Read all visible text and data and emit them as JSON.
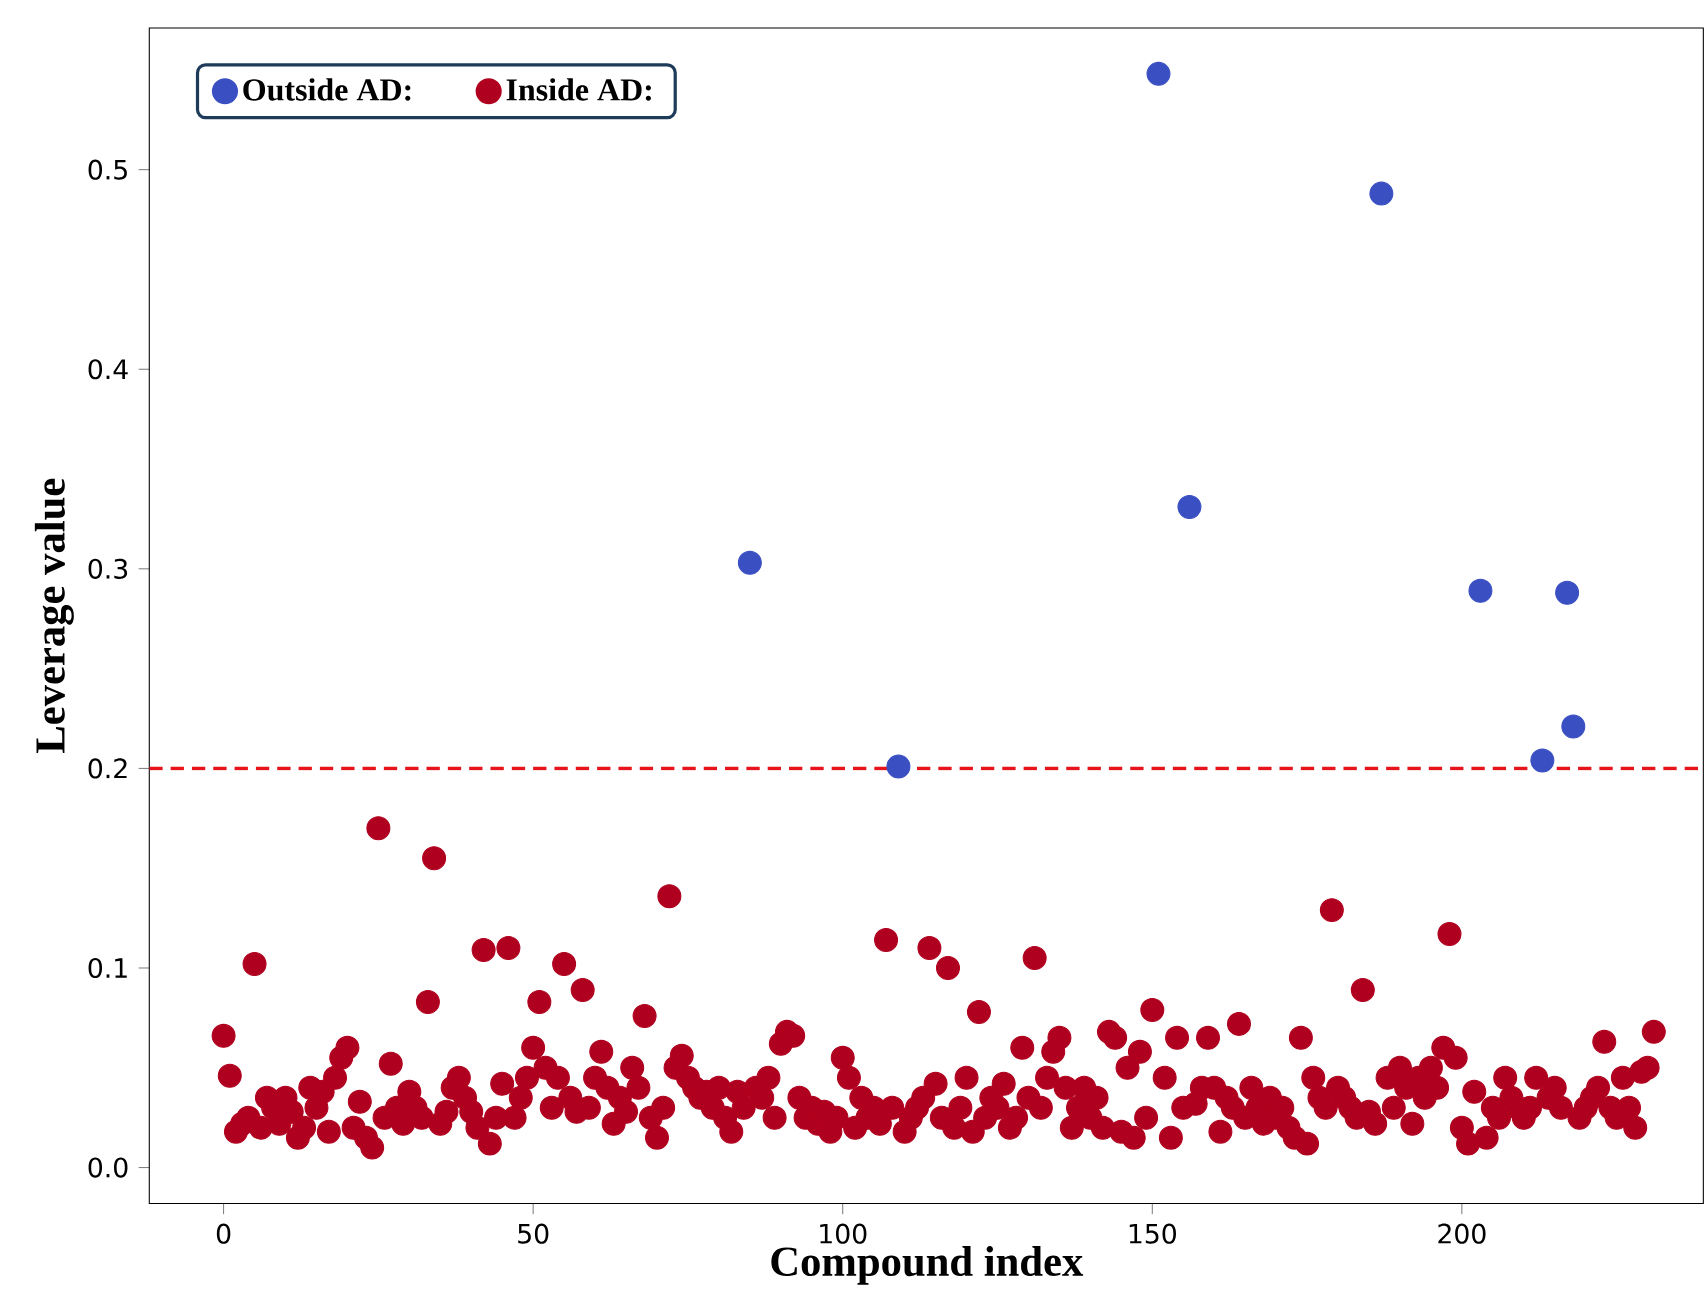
{
  "chart_data": {
    "type": "scatter",
    "xlabel": "Compound index",
    "ylabel": "Leverage value",
    "xlim": [
      -12,
      239
    ],
    "ylim": [
      -0.018,
      0.571
    ],
    "xticks": [
      0,
      50,
      100,
      150,
      200
    ],
    "yticks": [
      {
        "value": 0,
        "label": "0.0"
      },
      {
        "value": 0.1,
        "label": "0.1"
      },
      {
        "value": 0.2,
        "label": "0.2"
      },
      {
        "value": 0.3,
        "label": "0.3"
      },
      {
        "value": 0.4,
        "label": "0.4"
      },
      {
        "value": 0.5,
        "label": "0.5"
      }
    ],
    "legend": "top left",
    "marker": "circle",
    "grid": false,
    "ref_lines": [
      {
        "axis": "y",
        "value": 0.2,
        "color": "#e8141c",
        "line_style": "dashed"
      }
    ],
    "series": [
      {
        "name": "Outside AD:",
        "color": "#3a4fc2",
        "x": [
          85,
          109,
          151,
          156,
          187,
          203,
          213,
          217,
          218
        ],
        "values": [
          0.303,
          0.201,
          0.548,
          0.331,
          0.488,
          0.289,
          0.204,
          0.288,
          0.221
        ]
      },
      {
        "name": "Inside AD:",
        "color": "#b0001f",
        "x": [
          0,
          1,
          2,
          3,
          4,
          5,
          6,
          7,
          8,
          9,
          10,
          11,
          12,
          13,
          14,
          15,
          16,
          17,
          18,
          19,
          20,
          21,
          22,
          23,
          24,
          25,
          26,
          27,
          28,
          29,
          30,
          31,
          32,
          33,
          34,
          35,
          36,
          37,
          38,
          39,
          40,
          41,
          42,
          43,
          44,
          45,
          46,
          47,
          48,
          49,
          50,
          51,
          52,
          53,
          54,
          55,
          56,
          57,
          58,
          59,
          60,
          61,
          62,
          63,
          64,
          65,
          66,
          67,
          68,
          69,
          70,
          71,
          72,
          73,
          74,
          75,
          76,
          77,
          78,
          79,
          80,
          81,
          82,
          83,
          84,
          85,
          86,
          87,
          88,
          89,
          90,
          91,
          92,
          93,
          94,
          95,
          96,
          97,
          98,
          99,
          100,
          101,
          102,
          103,
          104,
          105,
          106,
          107,
          108,
          109,
          110,
          111,
          112,
          113,
          114,
          115,
          116,
          117,
          118,
          119,
          120,
          121,
          122,
          123,
          124,
          125,
          126,
          127,
          128,
          129,
          130,
          131,
          132,
          133,
          134,
          135,
          136,
          137,
          138,
          139,
          140,
          141,
          142,
          143,
          144,
          145,
          146,
          147,
          148,
          149,
          150,
          151,
          152,
          153,
          154,
          155,
          156,
          157,
          158,
          159,
          160,
          161,
          162,
          163,
          164,
          165,
          166,
          167,
          168,
          169,
          170,
          171,
          172,
          173,
          174,
          175,
          176,
          177,
          178,
          179,
          180,
          181,
          182,
          183,
          184,
          185,
          186,
          187,
          188,
          189,
          190,
          191,
          192,
          193,
          194,
          195,
          196,
          197,
          198,
          199,
          200,
          201,
          202,
          203,
          204,
          205,
          206,
          207,
          208,
          209,
          210,
          211,
          212,
          213,
          214,
          215,
          216,
          217,
          218,
          219,
          220,
          221,
          222,
          223,
          224,
          225,
          226,
          227,
          228,
          229,
          230,
          231
        ],
        "values": [
          0.066,
          0.046,
          0.018,
          0.022,
          0.025,
          0.102,
          0.02,
          0.035,
          0.03,
          0.022,
          0.035,
          0.028,
          0.015,
          0.02,
          0.04,
          0.03,
          0.038,
          0.018,
          0.045,
          0.055,
          0.06,
          0.02,
          0.033,
          0.015,
          0.01,
          0.17,
          0.025,
          0.052,
          0.03,
          0.022,
          0.038,
          0.03,
          0.025,
          0.083,
          0.155,
          0.022,
          0.028,
          0.04,
          0.045,
          0.035,
          0.028,
          0.02,
          0.109,
          0.012,
          0.025,
          0.042,
          0.11,
          0.025,
          0.035,
          0.045,
          0.06,
          0.083,
          0.05,
          0.03,
          0.045,
          0.102,
          0.035,
          0.028,
          0.089,
          0.03,
          0.045,
          0.058,
          0.04,
          0.022,
          0.035,
          0.028,
          0.05,
          0.04,
          0.076,
          0.025,
          0.015,
          0.03,
          0.136,
          0.05,
          0.056,
          0.045,
          0.04,
          0.035,
          0.038,
          0.03,
          0.04,
          0.025,
          0.018,
          0.038,
          0.03,
          null,
          0.04,
          0.035,
          0.045,
          0.025,
          0.062,
          0.068,
          0.066,
          0.035,
          0.025,
          0.03,
          0.022,
          0.028,
          0.018,
          0.025,
          0.055,
          0.045,
          0.02,
          0.035,
          0.025,
          0.03,
          0.022,
          0.114,
          0.03,
          null,
          0.018,
          0.025,
          0.03,
          0.035,
          0.11,
          0.042,
          0.025,
          0.1,
          0.02,
          0.03,
          0.045,
          0.018,
          0.078,
          0.025,
          0.035,
          0.03,
          0.042,
          0.02,
          0.025,
          0.06,
          0.035,
          0.105,
          0.03,
          0.045,
          0.058,
          0.065,
          0.04,
          0.02,
          0.03,
          0.04,
          0.025,
          0.035,
          0.02,
          0.068,
          0.065,
          0.018,
          0.05,
          0.015,
          0.058,
          0.025,
          0.079,
          null,
          0.045,
          0.015,
          0.065,
          0.03,
          null,
          0.032,
          0.04,
          0.065,
          0.04,
          0.018,
          0.035,
          0.03,
          0.072,
          0.025,
          0.04,
          0.03,
          0.022,
          0.035,
          0.025,
          0.03,
          0.02,
          0.015,
          0.065,
          0.012,
          0.045,
          0.035,
          0.03,
          0.129,
          0.04,
          0.035,
          0.03,
          0.025,
          0.089,
          0.028,
          0.022,
          null,
          0.045,
          0.03,
          0.05,
          0.04,
          0.022,
          0.045,
          0.035,
          0.05,
          0.04,
          0.06,
          0.117,
          0.055,
          0.02,
          0.012,
          0.038,
          null,
          0.015,
          0.03,
          0.025,
          0.045,
          0.035,
          0.03,
          0.025,
          0.03,
          0.045,
          null,
          0.035,
          0.04,
          0.03,
          null,
          null,
          0.025,
          0.03,
          0.035,
          0.04,
          0.063,
          0.03,
          0.025,
          0.045,
          0.03,
          0.02,
          0.048,
          0.05,
          0.068
        ]
      }
    ]
  }
}
